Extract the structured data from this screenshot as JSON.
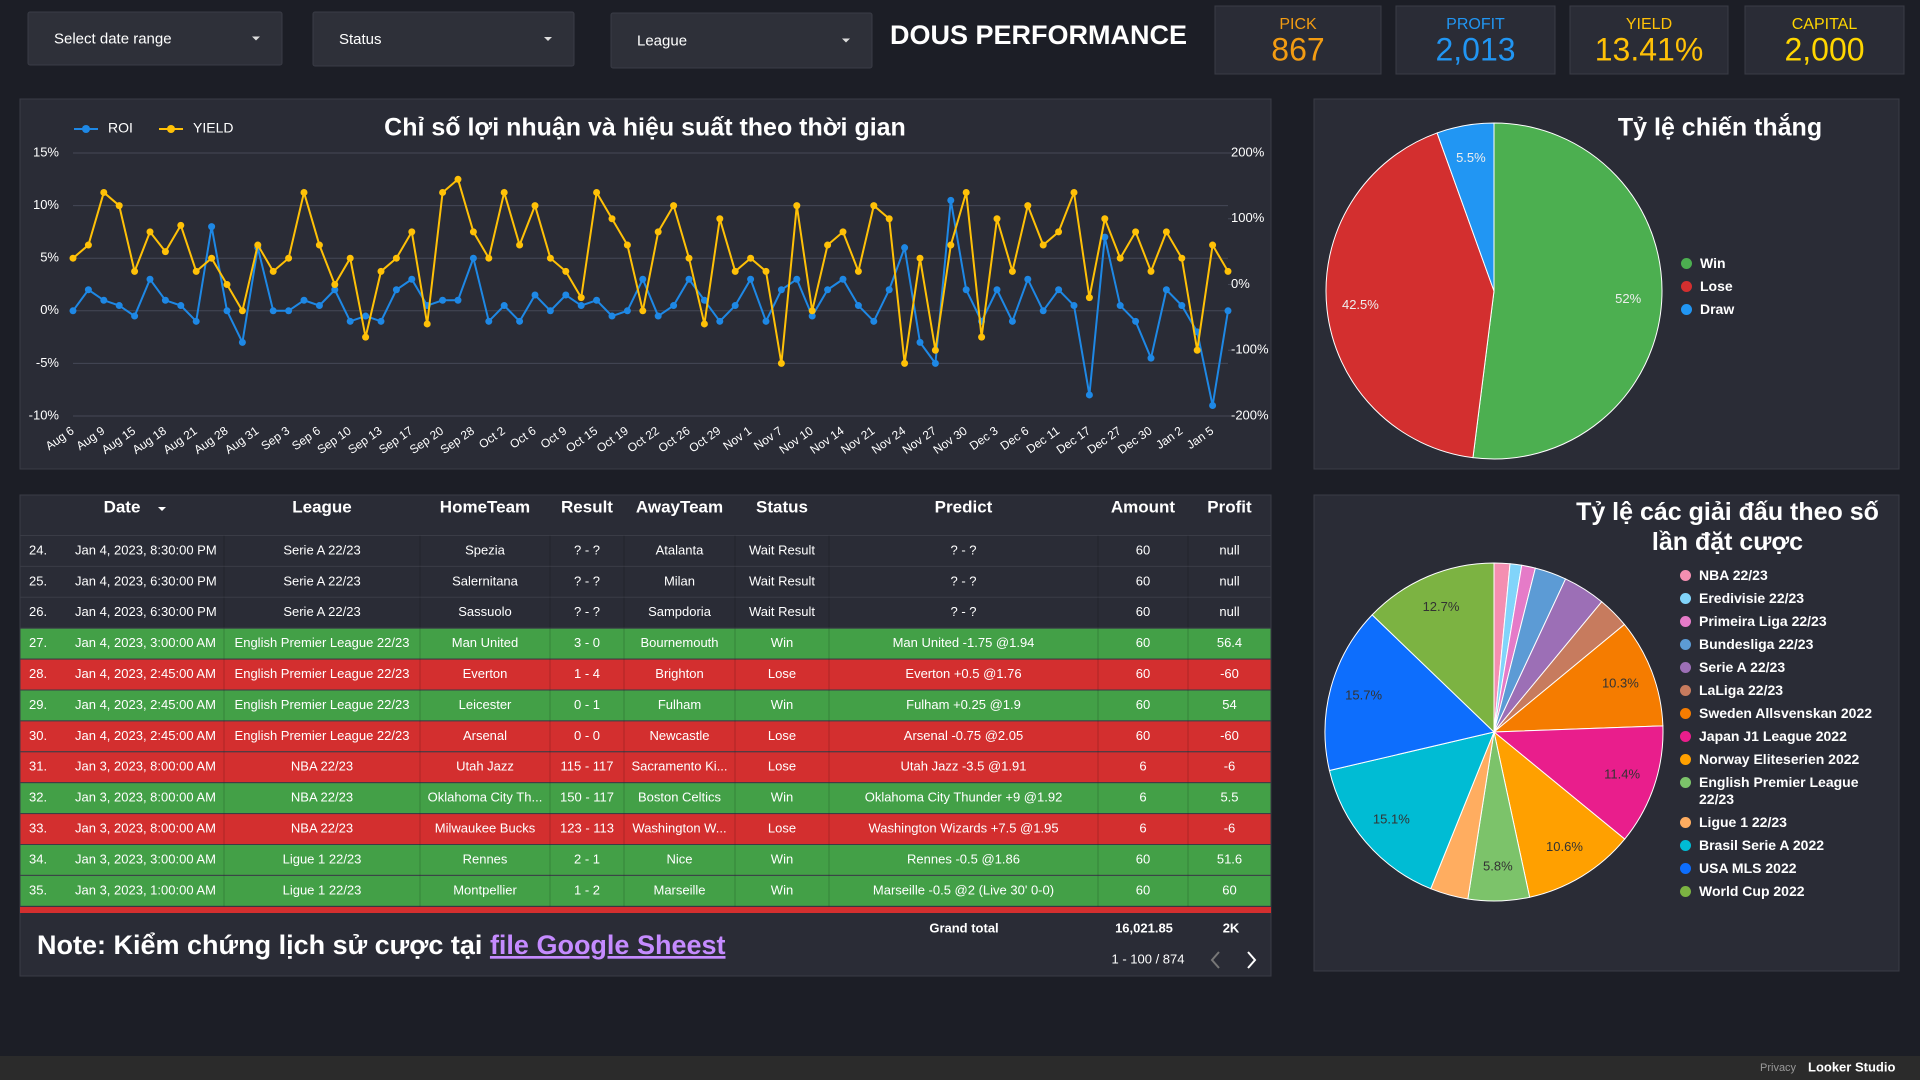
{
  "filters": [
    "Select date range",
    "Status",
    "League"
  ],
  "header": {
    "title": "DOUS PERFORMANCE"
  },
  "kpis": [
    {
      "label": "PICK",
      "value": "867",
      "color": "#f39c12"
    },
    {
      "label": "PROFIT",
      "value": "2,013",
      "color": "#2196f3"
    },
    {
      "label": "YIELD",
      "value": "13.41%",
      "color": "#ffc107"
    },
    {
      "label": "CAPITAL",
      "value": "2,000",
      "color": "#ffd600"
    }
  ],
  "chart_data": [
    {
      "type": "line",
      "title": "Chỉ số lợi nhuận và hiệu suất theo thời gian",
      "categories": [
        "Aug 6",
        null,
        "Aug 9",
        null,
        "Aug 15",
        null,
        "Aug 18",
        null,
        "Aug 21",
        null,
        "Aug 28",
        null,
        "Aug 31",
        null,
        "Sep 3",
        null,
        "Sep 6",
        null,
        "Sep 10",
        null,
        "Sep 13",
        null,
        "Sep 17",
        null,
        "Sep 20",
        null,
        "Sep 28",
        null,
        "Oct 2",
        null,
        "Oct 6",
        null,
        "Oct 9",
        null,
        "Oct 15",
        null,
        "Oct 19",
        null,
        "Oct 22",
        null,
        "Oct 26",
        null,
        "Oct 29",
        null,
        "Nov 1",
        null,
        "Nov 7",
        null,
        "Nov 10",
        null,
        "Nov 14",
        null,
        "Nov 21",
        null,
        "Nov 24",
        null,
        "Nov 27",
        null,
        "Nov 30",
        null,
        "Dec 3",
        null,
        "Dec 6",
        null,
        "Dec 11",
        null,
        "Dec 17",
        null,
        "Dec 27",
        null,
        "Dec 30",
        null,
        "Jan 2",
        null,
        "Jan 5",
        null
      ],
      "series": [
        {
          "name": "ROI",
          "color": "#1e88e5",
          "values": [
            0,
            2,
            1,
            0.5,
            -0.5,
            3,
            1,
            0.5,
            -1,
            8,
            0,
            -3,
            6,
            0,
            0,
            1,
            0.5,
            2,
            -1,
            -0.5,
            -1,
            2,
            3,
            0.5,
            1,
            1,
            5,
            -1,
            0.5,
            -1,
            1.5,
            0,
            1.5,
            0.5,
            1,
            -0.5,
            0,
            3,
            -0.5,
            0.5,
            3,
            1,
            -1,
            0.5,
            3,
            -1,
            2,
            3,
            -0.5,
            2,
            3,
            0.5,
            -1,
            2,
            6,
            -3,
            -5,
            10.5,
            2,
            -1,
            2,
            -1,
            3,
            0,
            2,
            0.5,
            -8,
            7,
            0.5,
            -1,
            -4.5,
            2,
            0.5,
            -2,
            -9,
            0
          ]
        },
        {
          "name": "YIELD",
          "color": "#ffc107",
          "axis": "y2",
          "values": [
            40,
            60,
            140,
            120,
            20,
            80,
            50,
            90,
            20,
            40,
            0,
            -40,
            60,
            20,
            40,
            140,
            60,
            0,
            40,
            -80,
            20,
            40,
            80,
            -60,
            140,
            160,
            80,
            40,
            140,
            60,
            120,
            40,
            20,
            -20,
            140,
            100,
            60,
            -40,
            80,
            120,
            40,
            -60,
            100,
            20,
            40,
            20,
            -120,
            120,
            -40,
            60,
            80,
            20,
            120,
            100,
            -120,
            40,
            -100,
            60,
            140,
            -80,
            100,
            20,
            120,
            60,
            80,
            140,
            -20,
            100,
            40,
            80,
            20,
            80,
            40,
            -100,
            60,
            20
          ]
        }
      ],
      "ylim": [
        -10,
        15
      ],
      "yticks": [
        {
          "value": -10,
          "label": "-10%"
        },
        {
          "value": -5,
          "label": "-5%"
        },
        {
          "value": 0,
          "label": "0%"
        },
        {
          "value": 5,
          "label": "5%"
        },
        {
          "value": 10,
          "label": "10%"
        },
        {
          "value": 15,
          "label": "15%"
        }
      ],
      "y2lim": [
        -200,
        200
      ],
      "y2ticks": [
        {
          "value": -200,
          "label": "-200%"
        },
        {
          "value": -100,
          "label": "-100%"
        },
        {
          "value": 0,
          "label": "0%"
        },
        {
          "value": 100,
          "label": "100%"
        },
        {
          "value": 200,
          "label": "200%"
        }
      ],
      "grid": true,
      "legend": "top-left"
    },
    {
      "type": "pie",
      "title": "Tỷ lệ chiến thắng",
      "categories": [
        "Win",
        "Lose",
        "Draw"
      ],
      "values": [
        52,
        42.5,
        5.5
      ],
      "value_labels": [
        "52%",
        "42.5%",
        "5.5%"
      ],
      "colors": [
        "#4caf50",
        "#d32f2f",
        "#2196f3"
      ],
      "legend": "right"
    },
    {
      "type": "pie",
      "title": "Tỷ lệ các giải đấu theo số lần đặt cược",
      "categories": [
        "NBA 22/23",
        "Eredivisie 22/23",
        "Primeira Liga 22/23",
        "Bundesliga 22/23",
        "Serie A 22/23",
        "LaLiga 22/23",
        "Sweden Allsvenskan 2022",
        "Japan J1 League 2022",
        "Norway Eliteserien 2022",
        "English Premier League 22/23",
        "Ligue 1 22/23",
        "Brasil Serie A 2022",
        "USA MLS 2022",
        "World Cup 2022"
      ],
      "values": [
        1.5,
        1.1,
        1.3,
        3,
        4,
        3,
        10.3,
        11.4,
        10.6,
        5.8,
        3.6,
        15.1,
        15.7,
        12.7
      ],
      "value_labels": [
        null,
        null,
        null,
        null,
        null,
        null,
        "10.3%",
        "11.4%",
        "10.6%",
        "5.8%",
        null,
        "15.1%",
        "15.7%",
        "12.7%"
      ],
      "colors": [
        "#f48fb1",
        "#81d4fa",
        "#e57bc8",
        "#5c9bd5",
        "#9c6fb6",
        "#c77b5e",
        "#f57c00",
        "#e91e8c",
        "#ffa000",
        "#7cc36a",
        "#ffad60",
        "#00bcd4",
        "#0d6efd",
        "#7cb342"
      ],
      "legend": "right"
    }
  ],
  "table": {
    "columns": [
      "Date",
      "League",
      "HomeTeam",
      "Result",
      "AwayTeam",
      "Status",
      "Predict",
      "Amount",
      "Profit"
    ],
    "rows": [
      [
        "24.",
        "Jan 4, 2023, 8:30:00 PM",
        "Serie A 22/23",
        "Spezia",
        "? - ?",
        "Atalanta",
        "Wait Result",
        "? - ?",
        "60",
        "null"
      ],
      [
        "25.",
        "Jan 4, 2023, 6:30:00 PM",
        "Serie A 22/23",
        "Salernitana",
        "? - ?",
        "Milan",
        "Wait Result",
        "? - ?",
        "60",
        "null"
      ],
      [
        "26.",
        "Jan 4, 2023, 6:30:00 PM",
        "Serie A 22/23",
        "Sassuolo",
        "? - ?",
        "Sampdoria",
        "Wait Result",
        "? - ?",
        "60",
        "null"
      ],
      [
        "27.",
        "Jan 4, 2023, 3:00:00 AM",
        "English Premier League 22/23",
        "Man United",
        "3 - 0",
        "Bournemouth",
        "Win",
        "Man United -1.75 @1.94",
        "60",
        "56.4"
      ],
      [
        "28.",
        "Jan 4, 2023, 2:45:00 AM",
        "English Premier League 22/23",
        "Everton",
        "1 - 4",
        "Brighton",
        "Lose",
        "Everton +0.5 @1.76",
        "60",
        "-60"
      ],
      [
        "29.",
        "Jan 4, 2023, 2:45:00 AM",
        "English Premier League 22/23",
        "Leicester",
        "0 - 1",
        "Fulham",
        "Win",
        "Fulham +0.25 @1.9",
        "60",
        "54"
      ],
      [
        "30.",
        "Jan 4, 2023, 2:45:00 AM",
        "English Premier League 22/23",
        "Arsenal",
        "0 - 0",
        "Newcastle",
        "Lose",
        "Arsenal -0.75 @2.05",
        "60",
        "-60"
      ],
      [
        "31.",
        "Jan 3, 2023, 8:00:00 AM",
        "NBA 22/23",
        "Utah Jazz",
        "115 - 117",
        "Sacramento Ki...",
        "Lose",
        "Utah Jazz -3.5 @1.91",
        "6",
        "-6"
      ],
      [
        "32.",
        "Jan 3, 2023, 8:00:00 AM",
        "NBA 22/23",
        "Oklahoma City Th...",
        "150 - 117",
        "Boston Celtics",
        "Win",
        "Oklahoma City Thunder +9 @1.92",
        "6",
        "5.5"
      ],
      [
        "33.",
        "Jan 3, 2023, 8:00:00 AM",
        "NBA 22/23",
        "Milwaukee Bucks",
        "123 - 113",
        "Washington W...",
        "Lose",
        "Washington Wizards +7.5 @1.95",
        "6",
        "-6"
      ],
      [
        "34.",
        "Jan 3, 2023, 3:00:00 AM",
        "Ligue 1 22/23",
        "Rennes",
        "2 - 1",
        "Nice",
        "Win",
        "Rennes -0.5 @1.86",
        "60",
        "51.6"
      ],
      [
        "35.",
        "Jan 3, 2023, 1:00:00 AM",
        "Ligue 1 22/23",
        "Montpellier",
        "1 - 2",
        "Marseille",
        "Win",
        "Marseille -0.5 @2 (Live 30' 0-0)",
        "60",
        "60"
      ]
    ],
    "row_fills": [
      "#2a2c36",
      "#2a2c36",
      "#2a2c36",
      "#43a047",
      "#d32f2f",
      "#43a047",
      "#d32f2f",
      "#d32f2f",
      "#43a047",
      "#d32f2f",
      "#43a047",
      "#43a047"
    ],
    "total_label": "Grand total",
    "total_amount": "16,021.85",
    "total_profit": "2K",
    "pagination": "1 - 100 / 874"
  },
  "note": {
    "text": "Note: Kiểm chứng lịch sử cược tại ",
    "link": "file Google Sheest"
  },
  "footer": {
    "privacy": "Privacy",
    "brand": "Looker Studio"
  }
}
